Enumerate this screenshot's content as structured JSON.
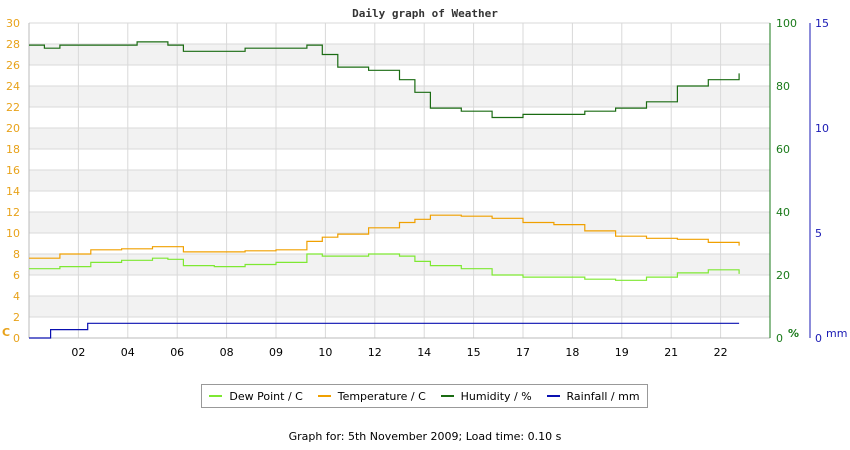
{
  "chart_data": {
    "type": "line",
    "title": "Daily graph of Weather",
    "x_tick_labels": [
      "02",
      "04",
      "06",
      "08",
      "09",
      "10",
      "12",
      "14",
      "15",
      "17",
      "18",
      "19",
      "21",
      "22"
    ],
    "x_range": [
      0,
      24
    ],
    "axes": {
      "left": {
        "unit": "C",
        "range": [
          0,
          30
        ],
        "ticks": [
          0,
          2,
          4,
          6,
          8,
          10,
          12,
          14,
          16,
          18,
          20,
          22,
          24,
          26,
          28,
          30
        ],
        "color": "#e8a21a"
      },
      "right1": {
        "unit": "%",
        "range": [
          0,
          100
        ],
        "ticks": [
          0,
          20,
          40,
          60,
          80,
          100
        ],
        "color": "#1a7a1a"
      },
      "right2": {
        "unit": "mm",
        "range": [
          0,
          15
        ],
        "ticks": [
          0,
          5,
          10,
          15
        ],
        "color": "#1a1ab4"
      }
    },
    "grid": true,
    "legend_position": "bottom",
    "series": [
      {
        "name": "Dew Point / C",
        "axis": "left",
        "color": "#7ee832",
        "x": [
          0,
          1,
          2,
          3,
          4,
          4.5,
          5,
          6,
          7,
          8,
          9,
          9.5,
          10,
          11,
          12,
          12.5,
          13,
          14,
          15,
          16,
          17,
          18,
          19,
          20,
          21,
          22,
          23
        ],
        "y": [
          6.6,
          6.8,
          7.2,
          7.4,
          7.6,
          7.5,
          6.9,
          6.8,
          7.0,
          7.2,
          8.0,
          7.8,
          7.8,
          8.0,
          7.8,
          7.3,
          6.9,
          6.6,
          6.0,
          5.8,
          5.8,
          5.6,
          5.5,
          5.8,
          6.2,
          6.5,
          6.1
        ]
      },
      {
        "name": "Temperature / C",
        "axis": "left",
        "color": "#f0a000",
        "x": [
          0,
          1,
          2,
          3,
          4,
          4.5,
          5,
          6,
          7,
          8,
          9,
          9.5,
          10,
          11,
          12,
          12.5,
          13,
          14,
          15,
          16,
          17,
          18,
          19,
          20,
          21,
          22,
          23
        ],
        "y": [
          7.6,
          8.0,
          8.4,
          8.5,
          8.7,
          8.7,
          8.2,
          8.2,
          8.3,
          8.4,
          9.2,
          9.6,
          9.9,
          10.5,
          11.0,
          11.3,
          11.7,
          11.6,
          11.4,
          11.0,
          10.8,
          10.2,
          9.7,
          9.5,
          9.4,
          9.1,
          8.8
        ]
      },
      {
        "name": "Humidity / %",
        "axis": "right1",
        "color": "#1a6b12",
        "x": [
          0,
          0.5,
          1,
          2,
          3,
          3.5,
          4,
          4.5,
          5,
          6,
          7,
          8,
          9,
          9.5,
          10,
          11,
          12,
          12.5,
          13,
          14,
          15,
          16,
          17,
          18,
          19,
          20,
          21,
          22,
          23
        ],
        "y": [
          93,
          92,
          93,
          93,
          93,
          94,
          94,
          93,
          91,
          91,
          92,
          92,
          93,
          90,
          86,
          85,
          82,
          78,
          73,
          72,
          70,
          71,
          71,
          72,
          73,
          75,
          80,
          82,
          84
        ]
      },
      {
        "name": "Rainfall / mm",
        "axis": "right2",
        "color": "#0a10b0",
        "x": [
          0,
          0.6,
          0.7,
          1.8,
          1.9,
          23.0
        ],
        "y": [
          0,
          0,
          0.4,
          0.4,
          0.7,
          0.7
        ]
      }
    ]
  },
  "footer": "Graph for: 5th November 2009; Load time: 0.10 s"
}
